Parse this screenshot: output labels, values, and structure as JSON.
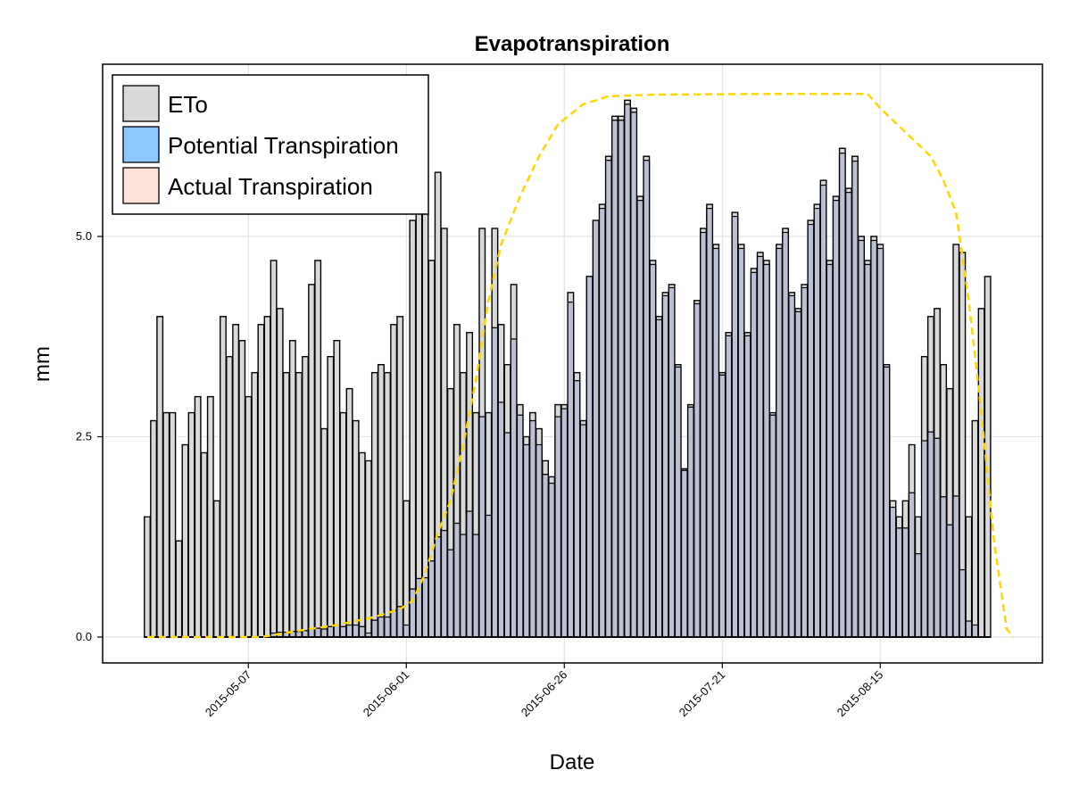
{
  "chart_data": {
    "type": "bar",
    "title": "Evapotranspiration",
    "xlabel": "Date",
    "ylabel": "mm",
    "ylim": [
      -0.33,
      7.0
    ],
    "yticks": [
      0.0,
      2.5,
      5.0
    ],
    "ytick_labels": [
      "0.0",
      "2.5",
      "5.0"
    ],
    "grid": true,
    "legend_position": "top-left",
    "x_start_date": "2015-04-21",
    "xticks": [
      {
        "day": 16,
        "label": "2015-05-07"
      },
      {
        "day": 41,
        "label": "2015-06-01"
      },
      {
        "day": 66,
        "label": "2015-06-26"
      },
      {
        "day": 91,
        "label": "2015-07-21"
      },
      {
        "day": 116,
        "label": "2015-08-15"
      }
    ],
    "colors": {
      "eto": "#d9d9d9",
      "potential": "#8ec6ff",
      "actual": "#ffe3d9",
      "overlap": "#a7b4d2",
      "kc_line": "#ffd700"
    },
    "series": [
      {
        "name": "ETo",
        "values": [
          1.5,
          2.7,
          4.0,
          2.8,
          2.8,
          1.2,
          2.4,
          2.8,
          3.0,
          2.3,
          3.0,
          1.7,
          4.0,
          3.5,
          3.9,
          3.7,
          3.0,
          3.3,
          3.9,
          4.0,
          4.7,
          4.1,
          3.3,
          3.7,
          3.3,
          3.5,
          4.4,
          4.7,
          2.6,
          3.5,
          3.7,
          2.8,
          3.1,
          2.7,
          2.3,
          2.2,
          3.3,
          3.4,
          3.3,
          3.9,
          4.0,
          1.7,
          5.2,
          5.3,
          6.1,
          4.7,
          5.8,
          5.1,
          3.1,
          3.9,
          3.3,
          3.8,
          2.8,
          5.1,
          2.8,
          5.1,
          3.9,
          3.4,
          4.4,
          2.9,
          2.5,
          2.8,
          2.6,
          2.2,
          2.0,
          2.9,
          2.9,
          4.3,
          3.3,
          2.7,
          4.5,
          5.2,
          5.4,
          6.0,
          6.5,
          6.5,
          6.7,
          6.6,
          5.5,
          6.0,
          4.7,
          4.0,
          4.3,
          4.4,
          3.4,
          2.1,
          2.9,
          4.2,
          5.1,
          5.4,
          4.9,
          3.3,
          3.8,
          5.3,
          4.9,
          3.8,
          4.6,
          4.8,
          4.7,
          2.8,
          4.9,
          5.1,
          4.3,
          4.1,
          4.4,
          5.2,
          5.4,
          5.7,
          4.7,
          5.5,
          6.1,
          5.6,
          6.0,
          5.0,
          4.7,
          5.0,
          4.9,
          3.4,
          1.7,
          1.5,
          1.7,
          2.4,
          1.5,
          3.5,
          4.0,
          4.1,
          3.4,
          3.1,
          4.9,
          4.8,
          1.5,
          2.7,
          4.1,
          4.5
        ]
      },
      {
        "name": "Potential Transpiration",
        "values": [
          0,
          0,
          0,
          0,
          0,
          0,
          0,
          0,
          0,
          0,
          0,
          0,
          0,
          0,
          0,
          0,
          0,
          0,
          0,
          0,
          0.05,
          0.06,
          0.06,
          0.07,
          0.07,
          0.08,
          0.1,
          0.11,
          0.1,
          0.13,
          0.15,
          0.13,
          0.15,
          0.15,
          0.13,
          0.05,
          0.21,
          0.25,
          0.25,
          0.33,
          0.38,
          0.15,
          0.6,
          0.73,
          0.74,
          0.95,
          1.25,
          1.33,
          1.09,
          1.42,
          1.28,
          1.57,
          1.28,
          2.75,
          1.52,
          3.86,
          2.93,
          2.55,
          3.72,
          2.77,
          2.4,
          2.7,
          2.4,
          2.03,
          1.92,
          2.75,
          2.85,
          4.18,
          3.2,
          2.65,
          4.5,
          5.2,
          5.35,
          5.95,
          6.45,
          6.45,
          6.65,
          6.55,
          5.45,
          5.95,
          4.65,
          3.96,
          4.26,
          4.36,
          3.37,
          2.08,
          2.87,
          4.16,
          5.05,
          5.35,
          4.85,
          3.27,
          3.76,
          5.25,
          4.85,
          3.76,
          4.55,
          4.75,
          4.65,
          2.77,
          4.85,
          5.05,
          4.26,
          4.06,
          4.36,
          5.15,
          5.35,
          5.64,
          4.65,
          5.45,
          6.04,
          5.55,
          5.94,
          4.95,
          4.65,
          4.95,
          4.85,
          3.37,
          1.62,
          1.36,
          1.36,
          1.8,
          1.04,
          2.45,
          2.56,
          2.48,
          1.75,
          1.4,
          1.76,
          0.84,
          0.2,
          0.15,
          0,
          0
        ]
      },
      {
        "name": "Actual Transpiration",
        "values": [
          0,
          0,
          0,
          0,
          0,
          0,
          0,
          0,
          0,
          0,
          0,
          0,
          0,
          0,
          0,
          0,
          0,
          0,
          0,
          0,
          0.05,
          0.06,
          0.06,
          0.07,
          0.07,
          0.08,
          0.1,
          0.11,
          0.1,
          0.13,
          0.15,
          0.13,
          0.15,
          0.15,
          0.13,
          0.05,
          0.21,
          0.25,
          0.25,
          0.33,
          0.38,
          0.15,
          0.6,
          0.73,
          0.74,
          0.95,
          1.25,
          1.33,
          1.09,
          1.42,
          1.28,
          1.57,
          1.28,
          2.75,
          1.52,
          3.86,
          2.93,
          2.55,
          3.72,
          2.77,
          2.4,
          2.7,
          2.4,
          2.03,
          1.92,
          2.75,
          2.85,
          4.18,
          3.2,
          2.65,
          4.5,
          5.2,
          5.35,
          5.95,
          6.45,
          6.45,
          6.65,
          6.55,
          5.45,
          5.95,
          4.65,
          3.96,
          4.26,
          4.36,
          3.37,
          2.08,
          2.87,
          4.16,
          5.05,
          5.35,
          4.85,
          3.27,
          3.76,
          5.25,
          4.85,
          3.76,
          4.55,
          4.75,
          4.65,
          2.77,
          4.85,
          5.05,
          4.26,
          4.06,
          4.36,
          5.15,
          5.35,
          5.64,
          4.65,
          5.45,
          6.04,
          5.55,
          5.94,
          4.95,
          4.65,
          4.95,
          4.85,
          3.37,
          1.62,
          1.36,
          1.36,
          1.8,
          1.04,
          2.45,
          2.56,
          2.48,
          1.75,
          1.4,
          1.76,
          0.84,
          0.2,
          0.15,
          0,
          0
        ]
      },
      {
        "name": "Kc curve",
        "style": "dashed",
        "points": [
          {
            "day": 0,
            "value": 0
          },
          {
            "day": 18,
            "value": 0
          },
          {
            "day": 24,
            "value": 0.08
          },
          {
            "day": 30,
            "value": 0.15
          },
          {
            "day": 36,
            "value": 0.25
          },
          {
            "day": 40,
            "value": 0.35
          },
          {
            "day": 42,
            "value": 0.45
          },
          {
            "day": 44,
            "value": 0.8
          },
          {
            "day": 46,
            "value": 1.3
          },
          {
            "day": 48,
            "value": 1.7
          },
          {
            "day": 50,
            "value": 2.4
          },
          {
            "day": 52,
            "value": 3.2
          },
          {
            "day": 54,
            "value": 4.2
          },
          {
            "day": 56,
            "value": 4.9
          },
          {
            "day": 59,
            "value": 5.5
          },
          {
            "day": 62,
            "value": 6.0
          },
          {
            "day": 65,
            "value": 6.4
          },
          {
            "day": 69,
            "value": 6.65
          },
          {
            "day": 73,
            "value": 6.75
          },
          {
            "day": 80,
            "value": 6.77
          },
          {
            "day": 100,
            "value": 6.78
          },
          {
            "day": 114,
            "value": 6.78
          },
          {
            "day": 116,
            "value": 6.6
          },
          {
            "day": 120,
            "value": 6.3
          },
          {
            "day": 124,
            "value": 6.0
          },
          {
            "day": 126,
            "value": 5.7
          },
          {
            "day": 128,
            "value": 5.3
          },
          {
            "day": 130,
            "value": 4.2
          },
          {
            "day": 132,
            "value": 2.8
          },
          {
            "day": 134,
            "value": 1.2
          },
          {
            "day": 136,
            "value": 0.1
          },
          {
            "day": 137,
            "value": 0
          }
        ]
      }
    ],
    "legend": [
      {
        "label": "ETo",
        "color": "#d9d9d9"
      },
      {
        "label": "Potential Transpiration",
        "color": "#8ec6ff"
      },
      {
        "label": "Actual Transpiration",
        "color": "#ffe3d9"
      }
    ]
  }
}
